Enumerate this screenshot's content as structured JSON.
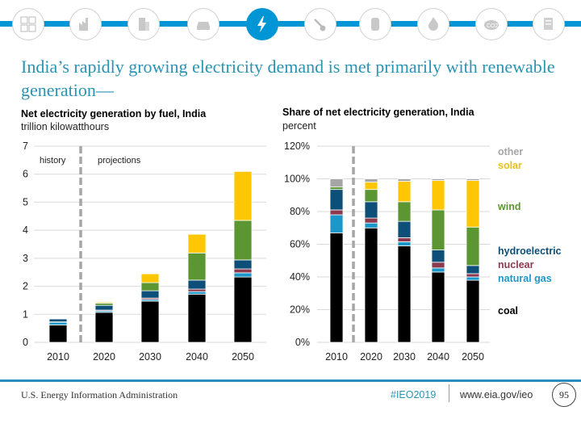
{
  "nav": {
    "icons": [
      {
        "name": "energy-overview-icon",
        "active": false
      },
      {
        "name": "industrial-icon",
        "active": false
      },
      {
        "name": "buildings-icon",
        "active": false
      },
      {
        "name": "transportation-car-icon",
        "active": false
      },
      {
        "name": "electricity-bolt-icon",
        "active": true
      },
      {
        "name": "mining-coal-icon",
        "active": false
      },
      {
        "name": "oil-barrel-icon",
        "active": false
      },
      {
        "name": "natural-gas-flame-icon",
        "active": false
      },
      {
        "name": "co2-emissions-icon",
        "active": false
      },
      {
        "name": "documents-icon",
        "active": false
      }
    ],
    "accent": "#0096d6"
  },
  "title": "India’s rapidly growing electricity demand is met primarily with renewable generation—",
  "colors": {
    "coal": "#000000",
    "natural_gas": "#1b98c9",
    "nuclear": "#8c3a4e",
    "hydroelectric": "#0d4f79",
    "wind": "#5b9632",
    "solar": "#ffc703",
    "other": "#a6a6a6",
    "title": "#2a94b4"
  },
  "chart_data": [
    {
      "type": "bar",
      "stacked": true,
      "title": "Net electricity generation by fuel, India",
      "ylabel": "trillion kilowatthours",
      "xlabel": "",
      "categories": [
        "2010",
        "2020",
        "2030",
        "2040",
        "2050"
      ],
      "ylim": [
        0,
        7
      ],
      "yticks": [
        "0",
        "1",
        "2",
        "3",
        "4",
        "5",
        "6",
        "7"
      ],
      "grid": true,
      "annotations": {
        "history": "history",
        "projections": "projections"
      },
      "series": [
        {
          "name": "coal",
          "values": [
            0.62,
            1.07,
            1.47,
            1.72,
            2.33
          ]
        },
        {
          "name": "natural gas",
          "values": [
            0.1,
            0.05,
            0.06,
            0.09,
            0.15
          ]
        },
        {
          "name": "nuclear",
          "values": [
            0.01,
            0.03,
            0.05,
            0.09,
            0.14
          ]
        },
        {
          "name": "hydroelectric",
          "values": [
            0.11,
            0.17,
            0.26,
            0.32,
            0.32
          ]
        },
        {
          "name": "wind",
          "values": [
            0.01,
            0.08,
            0.29,
            0.97,
            1.41
          ]
        },
        {
          "name": "solar",
          "values": [
            0.0,
            0.04,
            0.32,
            0.67,
            1.75
          ]
        },
        {
          "name": "other",
          "values": [
            0.0,
            0.01,
            0.01,
            0.01,
            0.02
          ]
        }
      ]
    },
    {
      "type": "bar",
      "stacked": true,
      "title": "Share of net electricity generation, India",
      "ylabel": "percent",
      "xlabel": "",
      "categories": [
        "2010",
        "2020",
        "2030",
        "2040",
        "2050"
      ],
      "ylim": [
        0,
        120
      ],
      "yticks": [
        "0%",
        "20%",
        "40%",
        "60%",
        "80%",
        "100%",
        "120%"
      ],
      "grid": true,
      "legend_position": "right",
      "legend": [
        {
          "key": "other",
          "label": "other"
        },
        {
          "key": "solar",
          "label": "solar"
        },
        {
          "key": "wind",
          "label": "wind"
        },
        {
          "key": "hydroelectric",
          "label": "hydroelectric"
        },
        {
          "key": "nuclear",
          "label": "nuclear"
        },
        {
          "key": "natural_gas",
          "label": "natural gas"
        },
        {
          "key": "coal",
          "label": "coal"
        }
      ],
      "series": [
        {
          "name": "coal",
          "values": [
            67,
            70,
            59,
            43,
            38
          ]
        },
        {
          "name": "natural gas",
          "values": [
            11,
            3,
            2.5,
            2.5,
            2
          ]
        },
        {
          "name": "nuclear",
          "values": [
            3,
            3,
            2.5,
            3.5,
            2
          ]
        },
        {
          "name": "hydroelectric",
          "values": [
            12.5,
            10,
            10,
            7.5,
            5
          ]
        },
        {
          "name": "wind",
          "values": [
            1.5,
            7.5,
            12,
            24.5,
            23.5
          ]
        },
        {
          "name": "solar",
          "values": [
            0,
            4.5,
            12.5,
            18,
            28.5
          ]
        },
        {
          "name": "other",
          "values": [
            5,
            2,
            1.5,
            1,
            1
          ]
        }
      ]
    }
  ],
  "footer": {
    "org": "U.S. Energy Information Administration",
    "hashtag": "#IEO2019",
    "url": "www.eia.gov/ieo",
    "page": "95"
  }
}
